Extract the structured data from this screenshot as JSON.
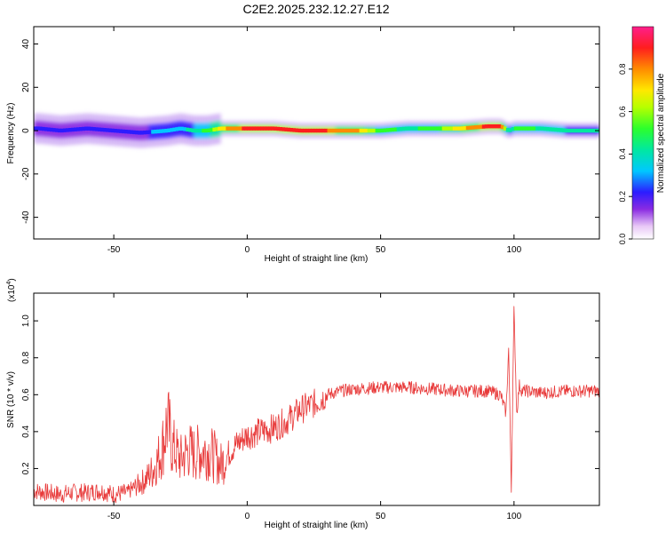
{
  "figure": {
    "title": "C2E2.2025.232.12.27.E12"
  },
  "chart_data": [
    {
      "type": "heatmap",
      "xlabel": "Height of straight line (km)",
      "ylabel": "Frequency (Hz)",
      "xlim": [
        -80,
        132
      ],
      "ylim": [
        -50,
        48
      ],
      "x_ticks": [
        -50,
        0,
        50,
        100
      ],
      "y_ticks": [
        -40,
        -20,
        0,
        20,
        40
      ],
      "colorbar": {
        "label": "Normalized spectral amplitude",
        "range": [
          0,
          1
        ],
        "ticks": [
          0.0,
          0.2,
          0.4,
          0.6,
          0.8
        ]
      },
      "ridge": {
        "x": [
          -78,
          -70,
          -60,
          -50,
          -40,
          -30,
          -25,
          -20,
          -15,
          -10,
          -5,
          0,
          10,
          20,
          30,
          40,
          50,
          60,
          70,
          80,
          90,
          95,
          98,
          100,
          105,
          110,
          120,
          132
        ],
        "frequency": [
          1,
          0,
          1,
          0,
          -1,
          0,
          1,
          0,
          0,
          1,
          1,
          1,
          1,
          0,
          0,
          0,
          0,
          1,
          1,
          1,
          2,
          2,
          0,
          1,
          1,
          1,
          0,
          0
        ],
        "amplitude": [
          0.25,
          0.3,
          0.3,
          0.25,
          0.3,
          0.35,
          0.4,
          0.45,
          0.55,
          0.75,
          0.85,
          0.95,
          0.9,
          0.95,
          0.9,
          0.85,
          0.55,
          0.5,
          0.55,
          0.75,
          0.95,
          0.95,
          0.4,
          0.55,
          0.55,
          0.5,
          0.45,
          0.45
        ]
      }
    },
    {
      "type": "line",
      "xlabel": "Height of straight line (km)",
      "ylabel": "SNR (10 * v/v)",
      "y_multiplier": "(x10",
      "y_multiplier_exp": "4",
      "y_multiplier_close": ")",
      "xlim": [
        -80,
        132
      ],
      "ylim": [
        0,
        1.15
      ],
      "x_ticks": [
        -50,
        0,
        50,
        100
      ],
      "y_ticks": [
        0.2,
        0.4,
        0.6,
        0.8,
        1.0
      ],
      "color": "#e83a3a",
      "series": [
        {
          "x": [
            -80,
            -75,
            -70,
            -65,
            -60,
            -55,
            -50,
            -45,
            -42,
            -38,
            -35,
            -32,
            -30,
            -28,
            -25,
            -22,
            -20,
            -15,
            -12,
            -10,
            -5,
            0,
            5,
            10,
            15,
            20,
            25,
            30,
            35,
            40,
            50,
            60,
            70,
            80,
            90,
            95,
            97,
            98,
            99,
            100,
            101,
            102,
            103,
            105,
            110,
            120,
            132
          ],
          "y": [
            0.08,
            0.07,
            0.06,
            0.07,
            0.07,
            0.08,
            0.06,
            0.07,
            0.1,
            0.14,
            0.2,
            0.3,
            0.45,
            0.32,
            0.25,
            0.3,
            0.28,
            0.3,
            0.26,
            0.22,
            0.32,
            0.38,
            0.4,
            0.42,
            0.46,
            0.52,
            0.55,
            0.6,
            0.62,
            0.63,
            0.64,
            0.64,
            0.63,
            0.62,
            0.62,
            0.6,
            0.5,
            0.85,
            0.1,
            1.05,
            0.5,
            0.65,
            0.62,
            0.62,
            0.61,
            0.62,
            0.62
          ]
        }
      ]
    }
  ]
}
